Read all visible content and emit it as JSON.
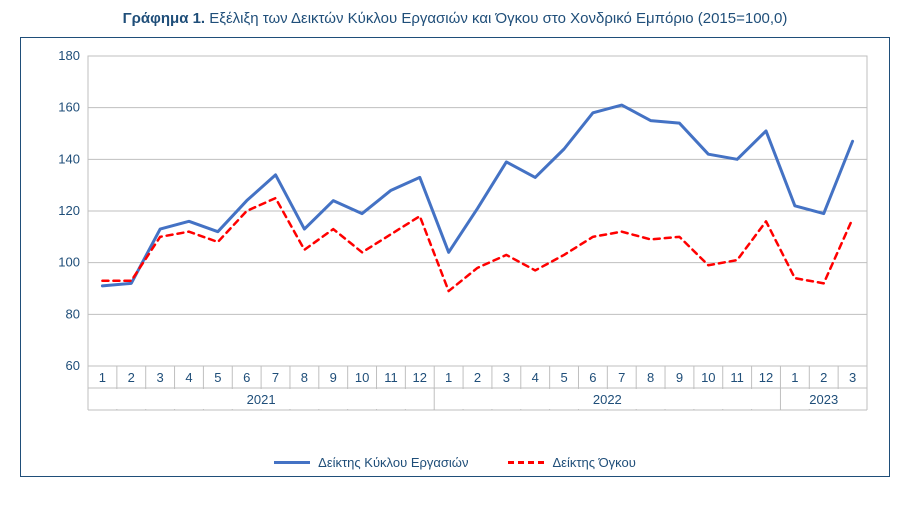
{
  "title_bold": "Γράφημα 1.",
  "title_rest": " Εξέλιξη των Δεικτών Κύκλου Εργασιών και Όγκου στο Χονδρικό Εμπόριο (2015=100,0)",
  "chart": {
    "type": "line",
    "background_color": "#ffffff",
    "border_color": "#1f4e79",
    "grid_color": "#bfbfbf",
    "text_color": "#1f4e79",
    "title_fontsize": 15,
    "label_fontsize": 13,
    "ylim": [
      60,
      180
    ],
    "ytick_step": 20,
    "yticks": [
      60,
      80,
      100,
      120,
      140,
      160,
      180
    ],
    "x_labels": [
      "1",
      "2",
      "3",
      "4",
      "5",
      "6",
      "7",
      "8",
      "9",
      "10",
      "11",
      "12",
      "1",
      "2",
      "3",
      "4",
      "5",
      "6",
      "7",
      "8",
      "9",
      "10",
      "11",
      "12",
      "1",
      "2",
      "3"
    ],
    "year_groups": [
      {
        "label": "2021",
        "start": 0,
        "end": 11
      },
      {
        "label": "2022",
        "start": 12,
        "end": 23
      },
      {
        "label": "2023",
        "start": 24,
        "end": 26
      }
    ],
    "series": [
      {
        "name": "Δείκτης Κύκλου Εργασιών",
        "color": "#4472c4",
        "line_width": 3,
        "dash": "none",
        "values": [
          91,
          92,
          113,
          116,
          112,
          124,
          134,
          113,
          124,
          119,
          128,
          133,
          104,
          121,
          139,
          133,
          144,
          158,
          161,
          155,
          154,
          142,
          140,
          151,
          122,
          119,
          147
        ]
      },
      {
        "name": "Δείκτης Όγκου",
        "color": "#ff0000",
        "line_width": 2.5,
        "dash": "6,5",
        "values": [
          93,
          93,
          110,
          112,
          108,
          120,
          125,
          105,
          113,
          104,
          111,
          118,
          89,
          98,
          103,
          97,
          103,
          110,
          112,
          109,
          110,
          99,
          101,
          116,
          94,
          92,
          117
        ]
      }
    ],
    "legend": [
      {
        "label": "Δείκτης Κύκλου Εργασιών",
        "color": "#4472c4",
        "dash": "solid"
      },
      {
        "label": "Δείκτης Όγκου",
        "color": "#ff0000",
        "dash": "dashed"
      }
    ]
  }
}
